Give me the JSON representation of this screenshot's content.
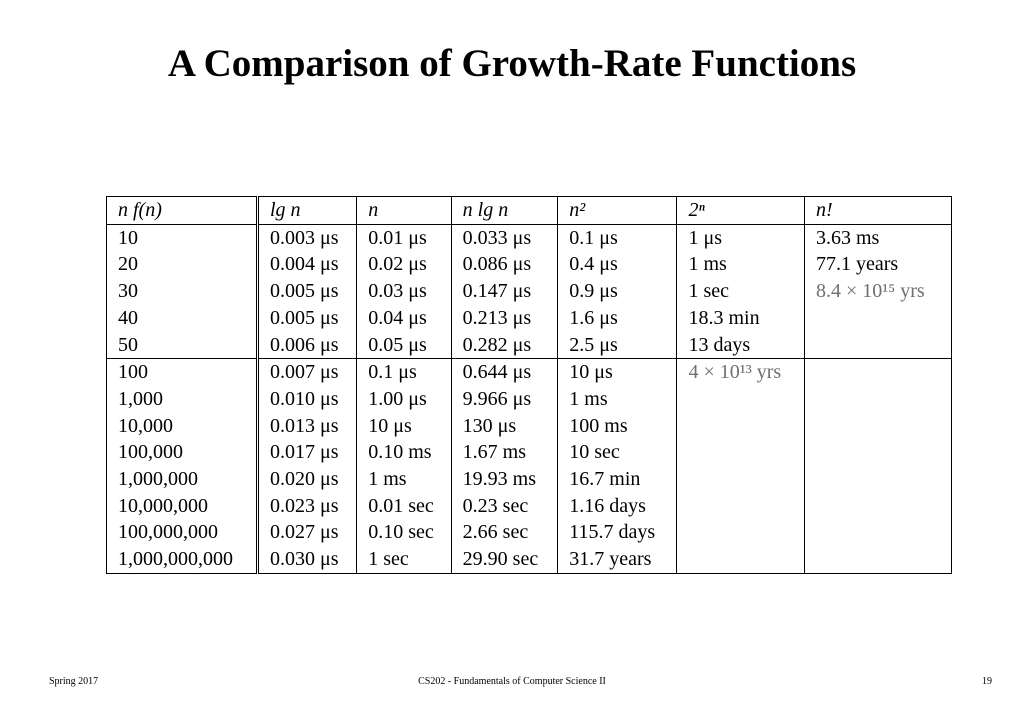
{
  "title": "A Comparison of Growth-Rate Functions",
  "table": {
    "headers": [
      "n  f(n)",
      "lg n",
      "n",
      "n lg n",
      "n²",
      "2ⁿ",
      "n!"
    ],
    "groups": [
      [
        [
          "10",
          "0.003 μs",
          "0.01 μs",
          "0.033 μs",
          "0.1 μs",
          "1 μs",
          "3.63 ms"
        ],
        [
          "20",
          "0.004 μs",
          "0.02 μs",
          "0.086 μs",
          "0.4 μs",
          "1 ms",
          "77.1 years"
        ],
        [
          "30",
          "0.005 μs",
          "0.03 μs",
          "0.147 μs",
          "0.9 μs",
          "1 sec",
          "8.4 × 10¹⁵ yrs"
        ],
        [
          "40",
          "0.005 μs",
          "0.04 μs",
          "0.213 μs",
          "1.6 μs",
          "18.3 min",
          ""
        ],
        [
          "50",
          "0.006 μs",
          "0.05 μs",
          "0.282 μs",
          "2.5 μs",
          "13 days",
          ""
        ]
      ],
      [
        [
          "100",
          "0.007 μs",
          "0.1 μs",
          "0.644 μs",
          "10 μs",
          "4 × 10¹³ yrs",
          ""
        ],
        [
          "1,000",
          "0.010 μs",
          "1.00 μs",
          "9.966 μs",
          "1 ms",
          "",
          ""
        ],
        [
          "10,000",
          "0.013 μs",
          "10 μs",
          "130 μs",
          "100 ms",
          "",
          ""
        ],
        [
          "100,000",
          "0.017 μs",
          "0.10 ms",
          "1.67 ms",
          "10 sec",
          "",
          ""
        ],
        [
          "1,000,000",
          "0.020 μs",
          "1 ms",
          "19.93 ms",
          "16.7 min",
          "",
          ""
        ],
        [
          "10,000,000",
          "0.023 μs",
          "0.01 sec",
          "0.23 sec",
          "1.16 days",
          "",
          ""
        ],
        [
          "100,000,000",
          "0.027 μs",
          "0.10 sec",
          "2.66 sec",
          "115.7 days",
          "",
          ""
        ],
        [
          "1,000,000,000",
          "0.030 μs",
          "1 sec",
          "29.90 sec",
          "31.7 years",
          "",
          ""
        ]
      ]
    ]
  },
  "footer": {
    "left": "Spring 2017",
    "center": "CS202 - Fundamentals of Computer Science II",
    "right": "19"
  }
}
